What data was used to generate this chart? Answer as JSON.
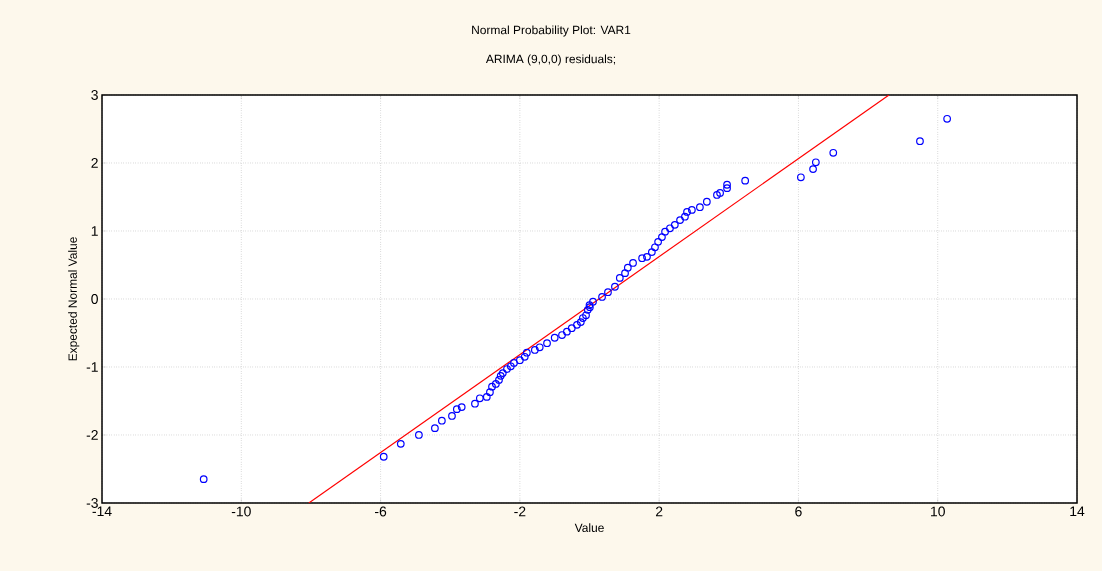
{
  "chart_data": {
    "type": "scatter",
    "title": "Normal Probability Plot: VAR1",
    "subtitle": "ARIMA (9,0,0) residuals;",
    "xlabel": "Value",
    "ylabel": "Expected Normal Value",
    "xlim": [
      -14,
      14
    ],
    "ylim": [
      -3,
      3
    ],
    "xticks": [
      -14,
      -10,
      -6,
      -2,
      2,
      6,
      10,
      14
    ],
    "yticks": [
      -3,
      -2,
      -1,
      0,
      1,
      2,
      3
    ],
    "grid": true,
    "marker": "circle",
    "series": [
      {
        "color": "#0000ff",
        "x": [
          -11.08,
          -5.91,
          -5.42,
          -4.9,
          -4.44,
          -4.24,
          -3.95,
          -3.81,
          -3.67,
          -3.29,
          -3.15,
          -2.95,
          -2.86,
          -2.8,
          -2.69,
          -2.6,
          -2.55,
          -2.49,
          -2.37,
          -2.26,
          -2.17,
          -2.0,
          -1.86,
          -1.8,
          -1.57,
          -1.43,
          -1.22,
          -1.0,
          -0.79,
          -0.65,
          -0.51,
          -0.36,
          -0.25,
          -0.19,
          -0.1,
          -0.05,
          0.0,
          0.01,
          0.1,
          0.36,
          0.53,
          0.73,
          0.87,
          1.02,
          1.1,
          1.25,
          1.51,
          1.65,
          1.79,
          1.88,
          1.97,
          2.08,
          2.17,
          2.31,
          2.45,
          2.6,
          2.74,
          2.8,
          2.94,
          3.17,
          3.37,
          3.66,
          3.75,
          3.95,
          3.95,
          4.47,
          6.07,
          6.42,
          6.5,
          7.0,
          9.49,
          10.27
        ],
        "values": [
          -2.65,
          -2.32,
          -2.13,
          -2.0,
          -1.9,
          -1.79,
          -1.72,
          -1.62,
          -1.59,
          -1.54,
          -1.46,
          -1.44,
          -1.37,
          -1.29,
          -1.25,
          -1.19,
          -1.13,
          -1.09,
          -1.03,
          -0.99,
          -0.94,
          -0.9,
          -0.85,
          -0.79,
          -0.75,
          -0.71,
          -0.65,
          -0.57,
          -0.53,
          -0.48,
          -0.43,
          -0.38,
          -0.34,
          -0.28,
          -0.24,
          -0.16,
          -0.09,
          -0.12,
          -0.04,
          0.03,
          0.1,
          0.18,
          0.31,
          0.38,
          0.46,
          0.53,
          0.6,
          0.62,
          0.69,
          0.76,
          0.84,
          0.91,
          0.99,
          1.04,
          1.09,
          1.16,
          1.21,
          1.28,
          1.31,
          1.35,
          1.43,
          1.53,
          1.56,
          1.63,
          1.68,
          1.74,
          1.79,
          1.91,
          2.01,
          2.15,
          2.32,
          2.65
        ]
      },
      {
        "type": "line",
        "color": "#ff0000",
        "marker": "none",
        "x": [
          -8.06,
          8.6
        ],
        "values": [
          -3,
          3
        ]
      }
    ]
  }
}
